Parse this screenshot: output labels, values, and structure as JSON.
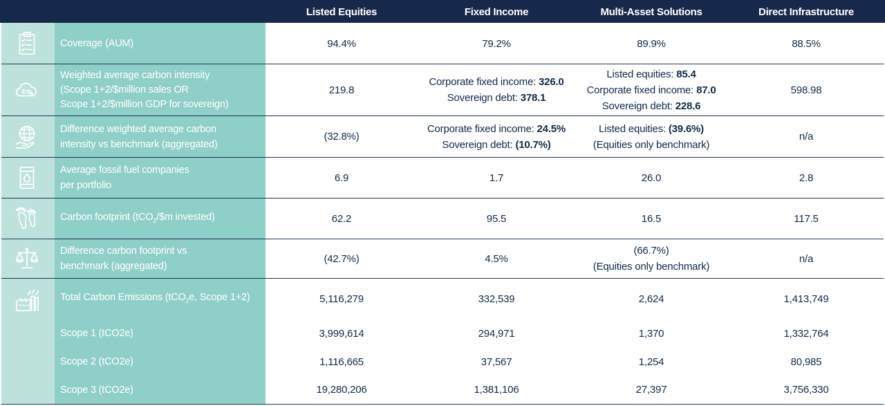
{
  "header": {
    "columns": [
      "Listed Equities",
      "Fixed Income",
      "Multi-Asset Solutions",
      "Direct Infrastructure"
    ]
  },
  "rows": {
    "coverage": {
      "icon": "clipboard-checklist-icon",
      "label": "Coverage (AUM)",
      "listed": "94.4%",
      "fixed": "79.2%",
      "multi": "89.9%",
      "infra": "88.5%"
    },
    "waci": {
      "icon": "co2-cloud-icon",
      "label_l1": "Weighted average carbon intensity",
      "label_l2": "(Scope 1+2/$million sales OR",
      "label_l3": "Scope 1+2/$million GDP for sovereign)",
      "listed": "219.8",
      "fixed_l1_text": "Corporate fixed income: ",
      "fixed_l1_val": "326.0",
      "fixed_l2_text": "Sovereign debt: ",
      "fixed_l2_val": "378.1",
      "multi_l1_text": "Listed equities: ",
      "multi_l1_val": "85.4",
      "multi_l2_text": "Corporate fixed income: ",
      "multi_l2_val": "87.0",
      "multi_l3_text": "Sovereign debt: ",
      "multi_l3_val": "228.6",
      "infra": "598.98"
    },
    "diff_waci": {
      "icon": "globe-hand-icon",
      "label_l1": "Difference weighted average carbon",
      "label_l2": "intensity vs benchmark (aggregated)",
      "listed": "(32.8%)",
      "fixed_l1_text": "Corporate fixed income: ",
      "fixed_l1_val": "24.5%",
      "fixed_l2_text": "Sovereign debt: ",
      "fixed_l2_val": "(10.7%)",
      "multi_l1_text": "Listed equities: ",
      "multi_l1_val": "(39.6%)",
      "multi_l2": "(Equities only benchmark)",
      "infra": "n/a"
    },
    "fossil": {
      "icon": "oil-barrel-icon",
      "label_l1": "Average fossil fuel companies",
      "label_l2": "per portfolio",
      "listed": "6.9",
      "fixed": "1.7",
      "multi": "26.0",
      "infra": "2.8"
    },
    "footprint": {
      "icon": "footprints-icon",
      "label_pre": "Carbon footprint (tCO",
      "label_sub": "2",
      "label_post": "/$m invested)",
      "listed": "62.2",
      "fixed": "95.5",
      "multi": "16.5",
      "infra": "117.5"
    },
    "diff_footprint": {
      "icon": "balance-scale-icon",
      "label_l1": "Difference carbon footprint vs",
      "label_l2": "benchmark (aggregated)",
      "listed": "(42.7%)",
      "fixed": "4.5%",
      "multi_l1": "(66.7%)",
      "multi_l2": "(Equities only benchmark)",
      "infra": "n/a"
    },
    "total": {
      "icon": "factory-emissions-icon",
      "label_pre": "Total Carbon Emissions (tCO",
      "label_sub": "2",
      "label_post": "e, Scope 1+2)",
      "listed": "5,116,279",
      "fixed": "332,539",
      "multi": "2,624",
      "infra": "1,413,749"
    },
    "scope1": {
      "label": "Scope 1 (tCO2e)",
      "listed": "3,999,614",
      "fixed": "294,971",
      "multi": "1,370",
      "infra": "1,332,764"
    },
    "scope2": {
      "label": "Scope 2 (tCO2e)",
      "listed": "1,116,665",
      "fixed": "37,567",
      "multi": "1,254",
      "infra": "80,985"
    },
    "scope3": {
      "label": "Scope 3 (tCO2e)",
      "listed": "19,280,206",
      "fixed": "1,381,106",
      "multi": "27,397",
      "infra": "3,756,330"
    }
  },
  "colors": {
    "header_bg": "#16294a",
    "icon_col_bg": "#bde2dc",
    "label_col_bg": "#8ecfc7",
    "text": "#12294a"
  }
}
